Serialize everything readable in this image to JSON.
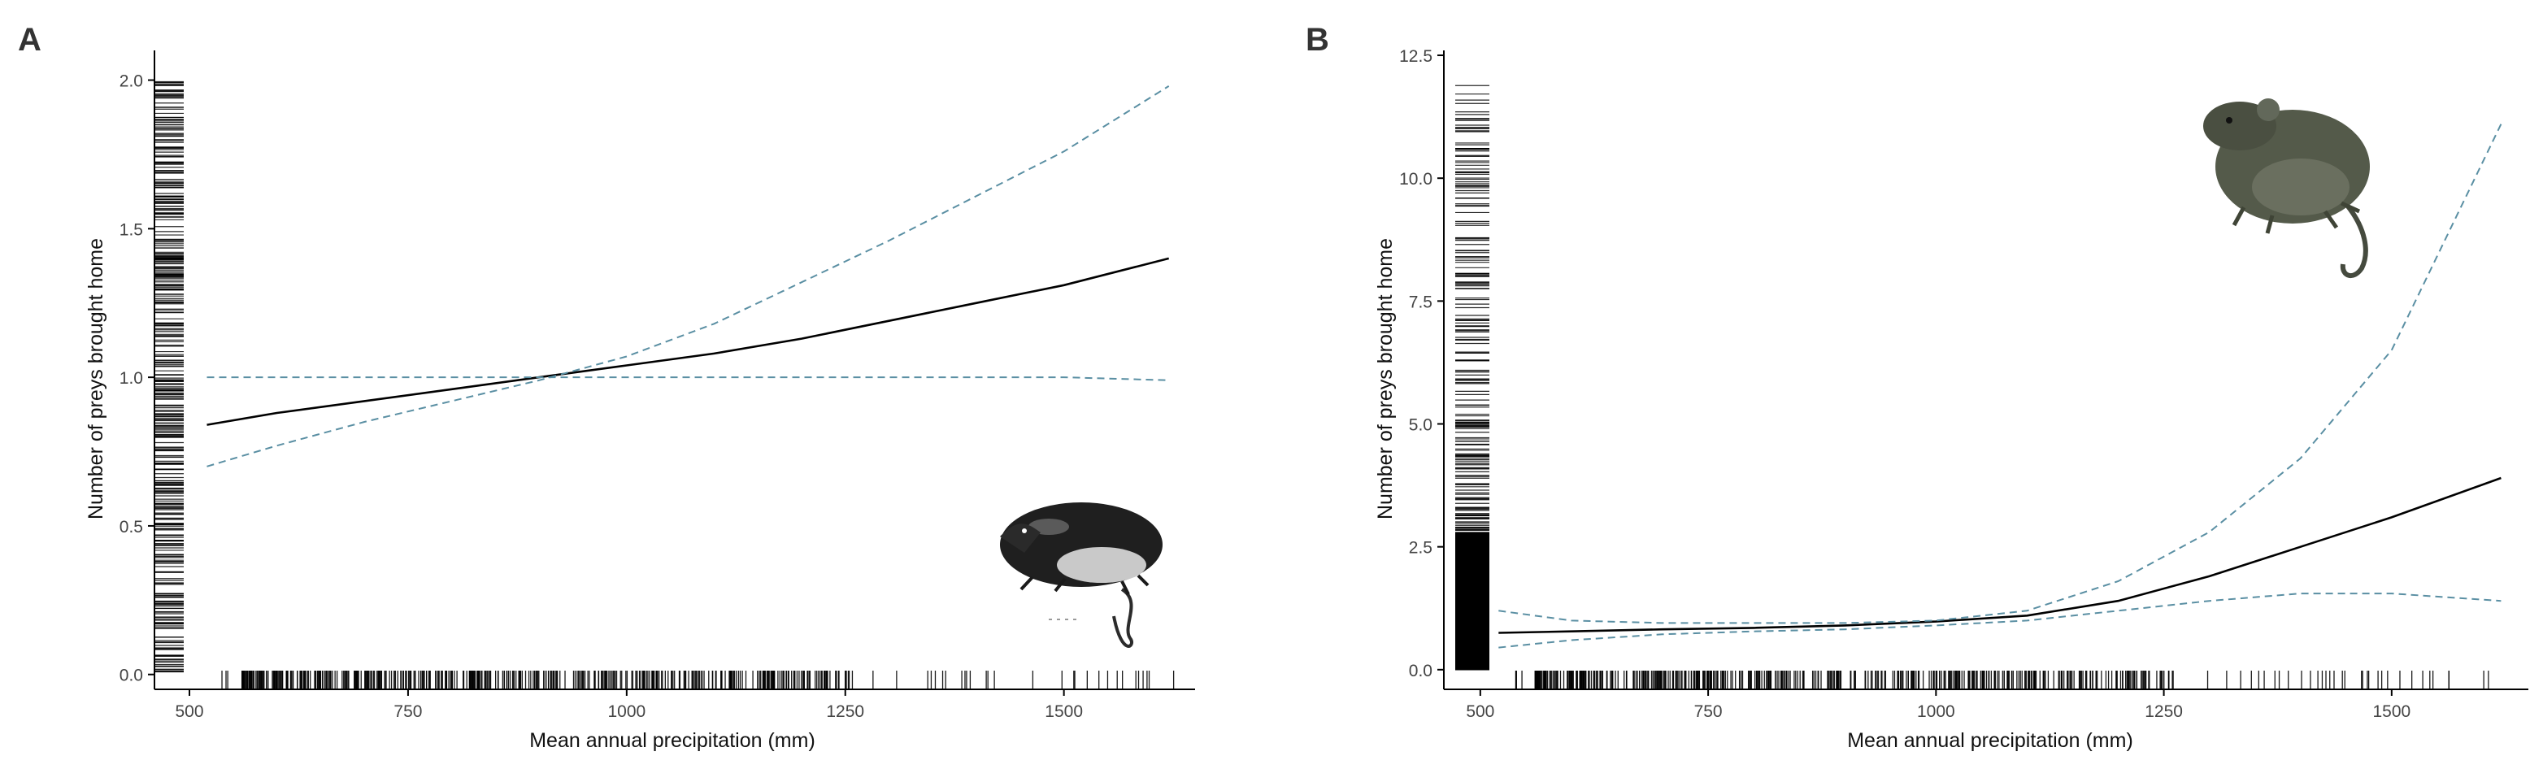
{
  "chart_data": [
    {
      "type": "line",
      "panel_label": "A",
      "xlabel": "Mean annual precipitation (mm)",
      "ylabel": "Number of preys brought home",
      "xlim": [
        460,
        1650
      ],
      "ylim": [
        -0.05,
        2.1
      ],
      "xticks": [
        500,
        750,
        1000,
        1250,
        1500
      ],
      "xtick_labels": [
        "500",
        "750",
        "1000",
        "1250",
        "1500"
      ],
      "yticks": [
        0,
        0.5,
        1,
        1.5,
        2
      ],
      "ytick_labels": [
        "0.0",
        "0.5",
        "1.0",
        "1.5",
        "2.0"
      ],
      "grid": false,
      "series": [
        {
          "style": "solid",
          "color": "#000000",
          "x": [
            520,
            600,
            700,
            800,
            900,
            1000,
            1100,
            1200,
            1300,
            1400,
            1500,
            1620
          ],
          "y": [
            0.84,
            0.88,
            0.92,
            0.96,
            1.0,
            1.04,
            1.08,
            1.13,
            1.19,
            1.25,
            1.31,
            1.4
          ]
        },
        {
          "style": "dashed",
          "color": "#5a8fa3",
          "x": [
            520,
            600,
            700,
            800,
            900,
            1000,
            1100,
            1200,
            1300,
            1400,
            1500,
            1620
          ],
          "y": [
            0.7,
            0.77,
            0.85,
            0.92,
            0.99,
            1.07,
            1.18,
            1.32,
            1.46,
            1.61,
            1.76,
            1.98
          ]
        },
        {
          "style": "dashed",
          "color": "#5a8fa3",
          "x": [
            520,
            600,
            700,
            800,
            900,
            1000,
            1100,
            1200,
            1300,
            1400,
            1500,
            1620
          ],
          "y": [
            1.0,
            1.0,
            1.0,
            1.0,
            1.0,
            1.0,
            1.0,
            1.0,
            1.0,
            1.0,
            1.0,
            0.99
          ]
        }
      ],
      "rug_x_range": [
        520,
        1630
      ],
      "rug_y_range": [
        0,
        2.0
      ],
      "illustration": "shrew-image"
    },
    {
      "type": "line",
      "panel_label": "B",
      "xlabel": "Mean annual precipitation (mm)",
      "ylabel": "Number of preys brought home",
      "xlim": [
        460,
        1650
      ],
      "ylim": [
        -0.4,
        12.6
      ],
      "xticks": [
        500,
        750,
        1000,
        1250,
        1500
      ],
      "xtick_labels": [
        "500",
        "750",
        "1000",
        "1250",
        "1500"
      ],
      "yticks": [
        0,
        2.5,
        5,
        7.5,
        10,
        12.5
      ],
      "ytick_labels": [
        "0.0",
        "2.5",
        "5.0",
        "7.5",
        "10.0",
        "12.5"
      ],
      "grid": false,
      "series": [
        {
          "style": "solid",
          "color": "#000000",
          "x": [
            520,
            600,
            700,
            800,
            900,
            1000,
            1100,
            1200,
            1300,
            1400,
            1500,
            1620
          ],
          "y": [
            0.75,
            0.78,
            0.82,
            0.85,
            0.9,
            0.98,
            1.1,
            1.4,
            1.9,
            2.5,
            3.1,
            3.9
          ]
        },
        {
          "style": "dashed",
          "color": "#5a8fa3",
          "x": [
            520,
            600,
            700,
            800,
            900,
            1000,
            1100,
            1200,
            1300,
            1400,
            1500,
            1620
          ],
          "y": [
            1.2,
            1.0,
            0.95,
            0.95,
            0.95,
            1.0,
            1.2,
            1.8,
            2.8,
            4.3,
            6.5,
            11.1
          ]
        },
        {
          "style": "dashed",
          "color": "#5a8fa3",
          "x": [
            520,
            600,
            700,
            800,
            900,
            1000,
            1100,
            1200,
            1300,
            1400,
            1500,
            1620
          ],
          "y": [
            0.45,
            0.6,
            0.72,
            0.78,
            0.82,
            0.9,
            1.0,
            1.2,
            1.4,
            1.55,
            1.55,
            1.4
          ]
        }
      ],
      "rug_x_range": [
        520,
        1630
      ],
      "rug_y_range": [
        0,
        12
      ],
      "illustration": "vole-image"
    }
  ]
}
